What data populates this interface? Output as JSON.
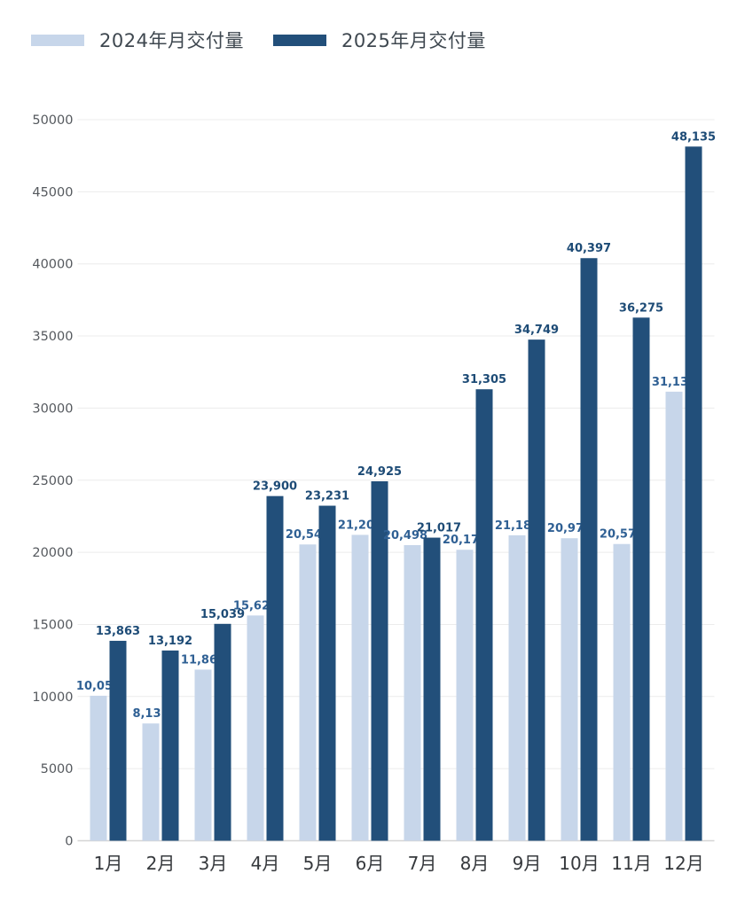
{
  "legend": {
    "items": [
      {
        "label": "2024年月交付量",
        "color": "#c7d6ea"
      },
      {
        "label": "2025年月交付量",
        "color": "#224f7a"
      }
    ]
  },
  "chart_data": {
    "type": "bar",
    "title": "",
    "xlabel": "",
    "ylabel": "",
    "categories": [
      "1月",
      "2月",
      "3月",
      "4月",
      "5月",
      "6月",
      "7月",
      "8月",
      "9月",
      "10月",
      "11月",
      "12月"
    ],
    "series": [
      {
        "id": "2024",
        "name": "2024年月交付量",
        "color": "#c7d6ea",
        "label_color": "#2f6094",
        "values": [
          10055,
          8132,
          11866,
          15620,
          20544,
          21209,
          20498,
          20176,
          21181,
          20976,
          20575,
          31138
        ],
        "labels": [
          "10,055",
          "8,132",
          "11,866",
          "15,620",
          "20,544",
          "21,209",
          "20,498",
          "20,176",
          "21,181",
          "20,976",
          "20,575",
          "31,138"
        ]
      },
      {
        "id": "2025",
        "name": "2025年月交付量",
        "color": "#224f7a",
        "label_color": "#1d4b76",
        "values": [
          13863,
          13192,
          15039,
          23900,
          23231,
          24925,
          21017,
          31305,
          34749,
          40397,
          36275,
          48135
        ],
        "labels": [
          "13,863",
          "13,192",
          "15,039",
          "23,900",
          "23,231",
          "24,925",
          "21,017",
          "31,305",
          "34,749",
          "40,397",
          "36,275",
          "48,135"
        ]
      }
    ],
    "ylim": [
      0,
      50000
    ],
    "yticks": [
      0,
      5000,
      10000,
      15000,
      20000,
      25000,
      30000,
      35000,
      40000,
      45000,
      50000
    ],
    "ytick_labels": [
      "0",
      "5000",
      "10000",
      "15000",
      "20000",
      "25000",
      "30000",
      "35000",
      "40000",
      "45000",
      "50000"
    ],
    "grid": "horizontal",
    "legend_position": "top-left",
    "axis_colors": {
      "tick_label": "#55595e",
      "x_label": "#36393d",
      "gridline": "#ececec",
      "baseline": "#d4d4d4"
    }
  }
}
